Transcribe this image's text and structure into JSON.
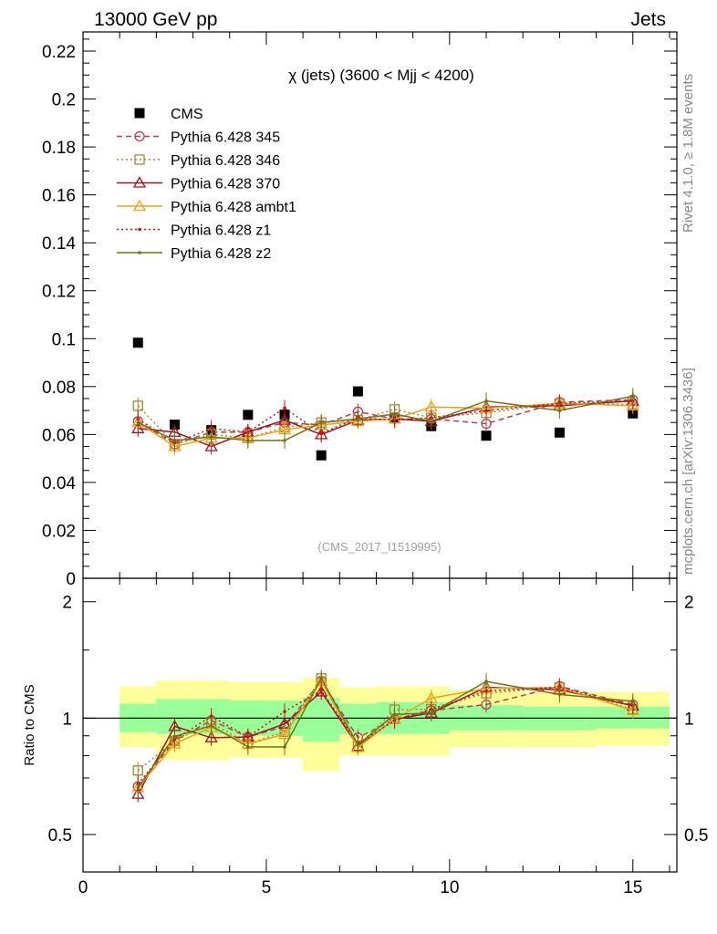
{
  "header": {
    "left": "13000 GeV pp",
    "right": "Jets"
  },
  "side": {
    "rivet": "Rivet 4.1.0, ≥ 1.8M events",
    "mcplots": "mcplots.cern.ch [arXiv:1306.3436]"
  },
  "colors": {
    "cms": "#000000",
    "p345": "#b5404d",
    "p346": "#a08a36",
    "p370": "#9b1526",
    "ambt1": "#f2a010",
    "z1": "#c8150e",
    "z2": "#6e7414",
    "band_outer": "#ffff99",
    "band_inner": "#99ff99"
  },
  "chart_data": [
    {
      "type": "scatter",
      "title": "χ (jets) (3600 < Mjj < 4200)",
      "watermark": "(CMS_2017_I1519995)",
      "xlabel": "",
      "ylabel": "",
      "xlim": [
        0,
        16.2
      ],
      "ylim": [
        0,
        0.228
      ],
      "yticks": [
        "0",
        "0.02",
        "0.04",
        "0.06",
        "0.08",
        "0.1",
        "0.12",
        "0.14",
        "0.16",
        "0.18",
        "0.2",
        "0.22"
      ],
      "x": [
        1.5,
        2.5,
        3.5,
        4.5,
        5.5,
        6.5,
        7.5,
        8.5,
        9.5,
        11,
        13,
        15
      ],
      "series": [
        {
          "name": "CMS",
          "key": "cms",
          "style": "data",
          "values": [
            0.0983,
            0.0641,
            0.0618,
            0.0682,
            0.0683,
            0.0513,
            0.078,
            0.067,
            0.0635,
            0.0595,
            0.0608,
            0.0688
          ]
        },
        {
          "name": "Pythia 6.428 345",
          "key": "p345",
          "style": "circle-dashed",
          "values": [
            0.0655,
            0.056,
            0.061,
            0.061,
            0.065,
            0.064,
            0.0695,
            0.0665,
            0.0665,
            0.0645,
            0.0735,
            0.0745
          ]
        },
        {
          "name": "Pythia 6.428 346",
          "key": "p346",
          "style": "square-dotted",
          "values": [
            0.072,
            0.056,
            0.06,
            0.0585,
            0.063,
            0.065,
            0.066,
            0.0705,
            0.067,
            0.069,
            0.073,
            0.0725
          ]
        },
        {
          "name": "Pythia 6.428 370",
          "key": "p370",
          "style": "triangle-solid",
          "values": [
            0.0625,
            0.061,
            0.055,
            0.061,
            0.066,
            0.06,
            0.066,
            0.0665,
            0.0655,
            0.0715,
            0.072,
            0.074
          ]
        },
        {
          "name": "Pythia 6.428 ambt1",
          "key": "ambt1",
          "style": "triangle-solid",
          "values": [
            0.065,
            0.055,
            0.0585,
            0.0585,
            0.062,
            0.064,
            0.0655,
            0.0665,
            0.0715,
            0.071,
            0.073,
            0.072
          ]
        },
        {
          "name": "Pythia 6.428 z1",
          "key": "z1",
          "style": "dot-dotted",
          "values": [
            0.0665,
            0.0565,
            0.0625,
            0.061,
            0.071,
            0.0605,
            0.067,
            0.066,
            0.067,
            0.07,
            0.073,
            0.074
          ]
        },
        {
          "name": "Pythia 6.428 z2",
          "key": "z2",
          "style": "dot-solid",
          "values": [
            0.065,
            0.0575,
            0.059,
            0.0575,
            0.0575,
            0.065,
            0.0665,
            0.0685,
            0.0655,
            0.074,
            0.07,
            0.076
          ]
        }
      ]
    },
    {
      "type": "scatter",
      "title": "",
      "xlabel": "",
      "ylabel": "Ratio to CMS",
      "xlim": [
        0,
        16.2
      ],
      "ylim": [
        0.4,
        2.3
      ],
      "scale": "log",
      "yticks": [
        "0.5",
        "1",
        "2"
      ],
      "xticks": [
        "0",
        "5",
        "10",
        "15"
      ],
      "reference_line": 1,
      "bands": [
        {
          "x0": 1,
          "x1": 2,
          "inner": [
            0.92,
            1.09
          ],
          "outer": [
            0.84,
            1.21
          ]
        },
        {
          "x0": 2,
          "x1": 3,
          "inner": [
            0.91,
            1.12
          ],
          "outer": [
            0.78,
            1.25
          ]
        },
        {
          "x0": 3,
          "x1": 4,
          "inner": [
            0.91,
            1.12
          ],
          "outer": [
            0.78,
            1.25
          ]
        },
        {
          "x0": 4,
          "x1": 5,
          "inner": [
            0.9,
            1.11
          ],
          "outer": [
            0.79,
            1.24
          ]
        },
        {
          "x0": 5,
          "x1": 6,
          "inner": [
            0.9,
            1.11
          ],
          "outer": [
            0.79,
            1.24
          ]
        },
        {
          "x0": 6,
          "x1": 7,
          "inner": [
            0.87,
            1.13
          ],
          "outer": [
            0.73,
            1.27
          ]
        },
        {
          "x0": 7,
          "x1": 8,
          "inner": [
            0.91,
            1.09
          ],
          "outer": [
            0.8,
            1.2
          ]
        },
        {
          "x0": 8,
          "x1": 9,
          "inner": [
            0.91,
            1.1
          ],
          "outer": [
            0.8,
            1.21
          ]
        },
        {
          "x0": 9,
          "x1": 10,
          "inner": [
            0.91,
            1.1
          ],
          "outer": [
            0.8,
            1.21
          ]
        },
        {
          "x0": 10,
          "x1": 12,
          "inner": [
            0.93,
            1.08
          ],
          "outer": [
            0.84,
            1.18
          ]
        },
        {
          "x0": 12,
          "x1": 14,
          "inner": [
            0.93,
            1.07
          ],
          "outer": [
            0.84,
            1.17
          ]
        },
        {
          "x0": 14,
          "x1": 16,
          "inner": [
            0.94,
            1.07
          ],
          "outer": [
            0.85,
            1.17
          ]
        }
      ],
      "x": [
        1.5,
        2.5,
        3.5,
        4.5,
        5.5,
        6.5,
        7.5,
        8.5,
        9.5,
        11,
        13,
        15
      ],
      "series": [
        {
          "name": "Pythia 6.428 345",
          "key": "p345",
          "style": "circle-dashed",
          "values": [
            0.666,
            0.874,
            0.987,
            0.894,
            0.952,
            1.248,
            0.891,
            0.993,
            1.047,
            1.084,
            1.209,
            1.083
          ]
        },
        {
          "name": "Pythia 6.428 346",
          "key": "p346",
          "style": "square-dotted",
          "values": [
            0.732,
            0.874,
            0.971,
            0.858,
            0.922,
            1.267,
            0.846,
            1.052,
            1.055,
            1.16,
            1.201,
            1.054
          ]
        },
        {
          "name": "Pythia 6.428 370",
          "key": "p370",
          "style": "triangle-solid",
          "values": [
            0.636,
            0.952,
            0.89,
            0.894,
            0.966,
            1.17,
            0.846,
            0.993,
            1.031,
            1.202,
            1.184,
            1.076
          ]
        },
        {
          "name": "Pythia 6.428 ambt1",
          "key": "ambt1",
          "style": "triangle-solid",
          "values": [
            0.661,
            0.858,
            0.947,
            0.858,
            0.908,
            1.248,
            0.84,
            0.993,
            1.126,
            1.193,
            1.201,
            1.047
          ]
        },
        {
          "name": "Pythia 6.428 z1",
          "key": "z1",
          "style": "dot-dotted",
          "values": [
            0.676,
            0.881,
            1.011,
            0.894,
            1.04,
            1.179,
            0.859,
            0.985,
            1.055,
            1.176,
            1.201,
            1.076
          ]
        },
        {
          "name": "Pythia 6.428 z2",
          "key": "z2",
          "style": "dot-solid",
          "values": [
            0.661,
            0.897,
            0.955,
            0.843,
            0.842,
            1.267,
            0.853,
            1.022,
            1.031,
            1.244,
            1.151,
            1.105
          ]
        }
      ]
    }
  ]
}
